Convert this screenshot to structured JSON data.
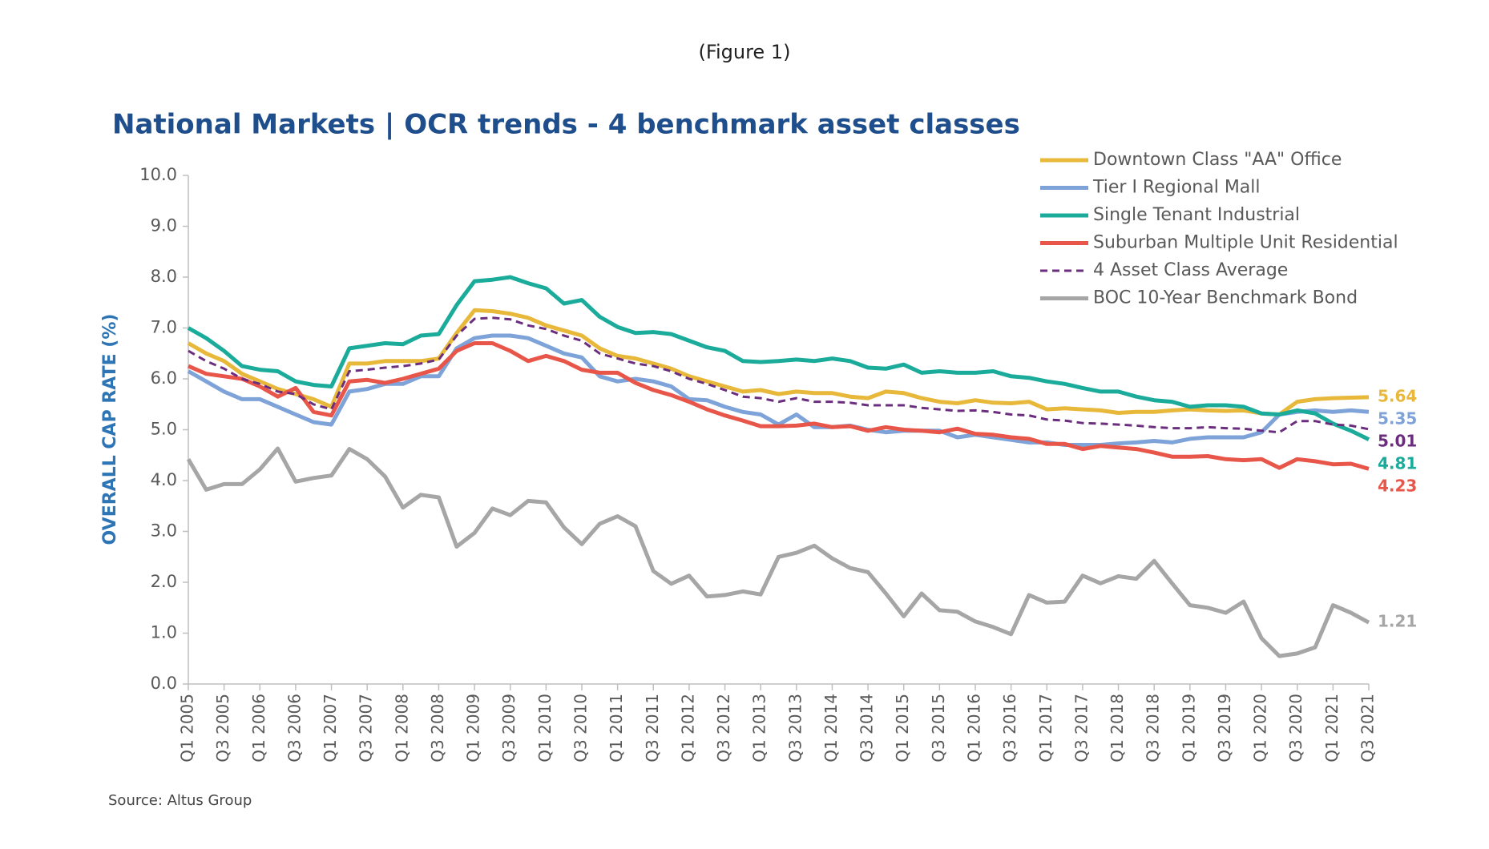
{
  "chart_data": {
    "type": "line",
    "figure_label": "(Figure 1)",
    "title": "National Markets | OCR trends - 4 benchmark asset classes",
    "y_label": "OVERALL CAP RATE (%)",
    "source": "Source:  Altus Group",
    "categories": [
      "Q1 2005",
      null,
      "Q3 2005",
      null,
      "Q1 2006",
      null,
      "Q3 2006",
      null,
      "Q1 2007",
      null,
      "Q3 2007",
      null,
      "Q1 2008",
      null,
      "Q3 2008",
      null,
      "Q1 2009",
      null,
      "Q3 2009",
      null,
      "Q1 2010",
      null,
      "Q3 2010",
      null,
      "Q1 2011",
      null,
      "Q3 2011",
      null,
      "Q1 2012",
      null,
      "Q3 2012",
      null,
      "Q1 2013",
      null,
      "Q3 2013",
      null,
      "Q1 2014",
      null,
      "Q3 2014",
      null,
      "Q1 2015",
      null,
      "Q3 2015",
      null,
      "Q1 2016",
      null,
      "Q3 2016",
      null,
      "Q1 2017",
      null,
      "Q3 2017",
      null,
      "Q1 2018",
      null,
      "Q3 2018",
      null,
      "Q1 2019",
      null,
      "Q3 2019",
      null,
      "Q1 2020",
      null,
      "Q3 2020",
      null,
      "Q1 2021",
      null,
      "Q3 2021"
    ],
    "ylim": [
      0,
      10
    ],
    "yticks": [
      {
        "value": 0,
        "label": "0.0"
      },
      {
        "value": 1,
        "label": "1.0"
      },
      {
        "value": 2,
        "label": "2.0"
      },
      {
        "value": 3,
        "label": "3.0"
      },
      {
        "value": 4,
        "label": "4.0"
      },
      {
        "value": 5,
        "label": "5.0"
      },
      {
        "value": 6,
        "label": "6.0"
      },
      {
        "value": 7,
        "label": "7.0"
      },
      {
        "value": 8,
        "label": "8.0"
      },
      {
        "value": 9,
        "label": "9.0"
      },
      {
        "value": 10,
        "label": "10.0"
      }
    ],
    "grid": false,
    "legend": "top-right",
    "end_labels": true,
    "series": [
      {
        "name": "Downtown Class \"AA\" Office",
        "color": "#e8b83a",
        "dash": false,
        "values": [
          6.7,
          6.5,
          6.35,
          6.1,
          5.95,
          5.8,
          5.7,
          5.6,
          5.45,
          6.3,
          6.3,
          6.35,
          6.35,
          6.35,
          6.4,
          6.9,
          7.35,
          7.33,
          7.28,
          7.2,
          7.05,
          6.95,
          6.85,
          6.6,
          6.45,
          6.4,
          6.3,
          6.2,
          6.05,
          5.95,
          5.85,
          5.75,
          5.78,
          5.7,
          5.75,
          5.72,
          5.72,
          5.65,
          5.62,
          5.75,
          5.72,
          5.62,
          5.55,
          5.52,
          5.58,
          5.53,
          5.52,
          5.55,
          5.4,
          5.42,
          5.4,
          5.38,
          5.33,
          5.35,
          5.35,
          5.38,
          5.4,
          5.38,
          5.37,
          5.38,
          5.32,
          5.3,
          5.55,
          5.6,
          5.62,
          5.63,
          5.64
        ]
      },
      {
        "name": "Tier I Regional Mall",
        "color": "#7ea3d8",
        "dash": false,
        "values": [
          6.15,
          5.95,
          5.75,
          5.6,
          5.6,
          5.45,
          5.3,
          5.15,
          5.1,
          5.75,
          5.8,
          5.9,
          5.9,
          6.05,
          6.05,
          6.6,
          6.8,
          6.85,
          6.85,
          6.8,
          6.65,
          6.5,
          6.42,
          6.05,
          5.95,
          6.0,
          5.95,
          5.85,
          5.6,
          5.58,
          5.45,
          5.35,
          5.3,
          5.1,
          5.3,
          5.05,
          5.05,
          5.08,
          5.0,
          4.95,
          4.98,
          4.98,
          4.98,
          4.85,
          4.9,
          4.85,
          4.8,
          4.75,
          4.75,
          4.7,
          4.7,
          4.7,
          4.73,
          4.75,
          4.78,
          4.75,
          4.82,
          4.85,
          4.85,
          4.85,
          4.95,
          5.3,
          5.35,
          5.38,
          5.35,
          5.38,
          5.35
        ]
      },
      {
        "name": "Single Tenant Industrial",
        "color": "#1aab9b",
        "dash": false,
        "values": [
          7.0,
          6.8,
          6.55,
          6.25,
          6.18,
          6.15,
          5.95,
          5.88,
          5.85,
          6.6,
          6.65,
          6.7,
          6.68,
          6.85,
          6.88,
          7.45,
          7.92,
          7.95,
          8.0,
          7.88,
          7.78,
          7.48,
          7.55,
          7.22,
          7.02,
          6.9,
          6.92,
          6.88,
          6.75,
          6.62,
          6.55,
          6.35,
          6.33,
          6.35,
          6.38,
          6.35,
          6.4,
          6.35,
          6.22,
          6.2,
          6.28,
          6.12,
          6.15,
          6.12,
          6.12,
          6.15,
          6.05,
          6.02,
          5.95,
          5.9,
          5.82,
          5.75,
          5.75,
          5.65,
          5.58,
          5.55,
          5.45,
          5.48,
          5.48,
          5.45,
          5.32,
          5.3,
          5.38,
          5.32,
          5.12,
          4.98,
          4.81
        ]
      },
      {
        "name": "Suburban Multiple Unit Residential",
        "color": "#e8564a",
        "dash": false,
        "values": [
          6.25,
          6.1,
          6.05,
          6.0,
          5.85,
          5.65,
          5.82,
          5.35,
          5.28,
          5.95,
          5.98,
          5.92,
          6.0,
          6.1,
          6.2,
          6.55,
          6.7,
          6.7,
          6.55,
          6.35,
          6.45,
          6.35,
          6.18,
          6.12,
          6.12,
          5.92,
          5.78,
          5.68,
          5.55,
          5.4,
          5.28,
          5.18,
          5.07,
          5.07,
          5.08,
          5.12,
          5.05,
          5.07,
          4.98,
          5.05,
          5.0,
          4.98,
          4.95,
          5.02,
          4.92,
          4.9,
          4.85,
          4.82,
          4.72,
          4.72,
          4.62,
          4.68,
          4.65,
          4.62,
          4.55,
          4.47,
          4.47,
          4.48,
          4.42,
          4.4,
          4.42,
          4.25,
          4.42,
          4.38,
          4.32,
          4.33,
          4.23
        ]
      },
      {
        "name": "4 Asset Class Average",
        "color": "#6b2e7e",
        "dash": true,
        "values": [
          6.55,
          6.35,
          6.2,
          6.0,
          5.9,
          5.75,
          5.7,
          5.5,
          5.4,
          6.15,
          6.18,
          6.22,
          6.25,
          6.3,
          6.38,
          6.85,
          7.18,
          7.2,
          7.17,
          7.05,
          6.98,
          6.85,
          6.75,
          6.5,
          6.4,
          6.3,
          6.25,
          6.15,
          6.0,
          5.9,
          5.78,
          5.65,
          5.62,
          5.55,
          5.62,
          5.55,
          5.55,
          5.53,
          5.48,
          5.48,
          5.48,
          5.43,
          5.4,
          5.37,
          5.38,
          5.35,
          5.3,
          5.28,
          5.2,
          5.18,
          5.13,
          5.12,
          5.1,
          5.08,
          5.05,
          5.03,
          5.03,
          5.05,
          5.03,
          5.02,
          4.98,
          4.95,
          5.17,
          5.17,
          5.1,
          5.08,
          5.01
        ]
      },
      {
        "name": "BOC 10-Year Benchmark Bond",
        "color": "#a6a6a6",
        "dash": false,
        "values": [
          4.42,
          3.82,
          3.93,
          3.93,
          4.22,
          4.63,
          3.98,
          4.05,
          4.1,
          4.62,
          4.42,
          4.08,
          3.47,
          3.72,
          3.67,
          2.7,
          2.97,
          3.45,
          3.32,
          3.6,
          3.57,
          3.08,
          2.75,
          3.15,
          3.3,
          3.1,
          2.22,
          1.97,
          2.13,
          1.72,
          1.75,
          1.82,
          1.76,
          2.5,
          2.58,
          2.72,
          2.47,
          2.28,
          2.2,
          1.78,
          1.33,
          1.78,
          1.45,
          1.42,
          1.23,
          1.12,
          0.98,
          1.75,
          1.6,
          1.62,
          2.13,
          1.98,
          2.12,
          2.07,
          2.42,
          1.98,
          1.55,
          1.5,
          1.4,
          1.62,
          0.9,
          0.55,
          0.6,
          0.72,
          1.55,
          1.4,
          1.21
        ]
      }
    ]
  }
}
